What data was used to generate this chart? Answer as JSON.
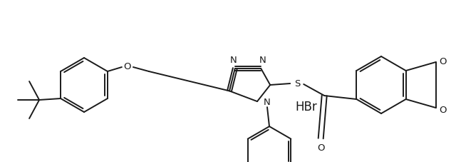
{
  "background_color": "#ffffff",
  "line_color": "#1a1a1a",
  "line_width": 1.4,
  "font_size_atom": 9.5,
  "font_size_hbr": 12,
  "hbr_text": "HBr",
  "figsize": [
    6.4,
    2.28
  ],
  "dpi": 100,
  "xlim": [
    0,
    640
  ],
  "ylim": [
    0,
    228
  ]
}
